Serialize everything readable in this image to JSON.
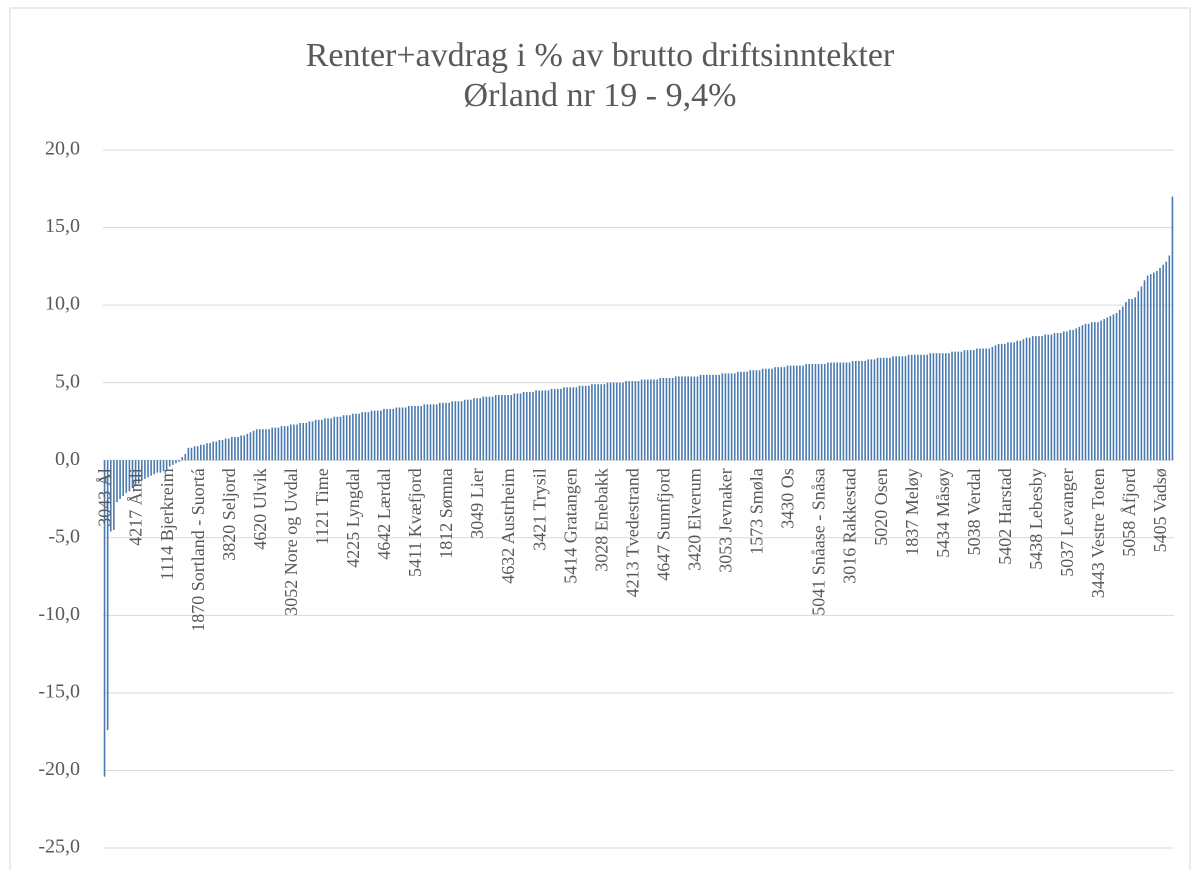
{
  "chart_data": {
    "type": "bar",
    "title": "Renter+avdrag i % av brutto driftsinntekter",
    "subtitle": "Ørland nr 19 - 9,4%",
    "color": "#4a7ab0",
    "grid": true,
    "ylim": [
      -25,
      20
    ],
    "yticks": [
      {
        "value": -25,
        "label": "-25,0"
      },
      {
        "value": -20,
        "label": "-20,0"
      },
      {
        "value": -15,
        "label": "-15,0"
      },
      {
        "value": -10,
        "label": "-10,0"
      },
      {
        "value": -5,
        "label": "-5,0"
      },
      {
        "value": 0,
        "label": "0,0"
      },
      {
        "value": 5,
        "label": "5,0"
      },
      {
        "value": 10,
        "label": "10,0"
      },
      {
        "value": 15,
        "label": "15,0"
      },
      {
        "value": 20,
        "label": "20,0"
      }
    ],
    "categories": [
      "3043 Ål",
      null,
      null,
      null,
      null,
      null,
      null,
      null,
      null,
      null,
      "4217 Åmli",
      null,
      null,
      null,
      null,
      null,
      null,
      null,
      null,
      null,
      "1114 Bjerkreim",
      null,
      null,
      null,
      null,
      null,
      null,
      null,
      null,
      null,
      "1870 Sortland - Suortá",
      null,
      null,
      null,
      null,
      null,
      null,
      null,
      null,
      null,
      "3820 Seljord",
      null,
      null,
      null,
      null,
      null,
      null,
      null,
      null,
      null,
      "4620 Ulvik",
      null,
      null,
      null,
      null,
      null,
      null,
      null,
      null,
      null,
      "3052 Nore og Uvdal",
      null,
      null,
      null,
      null,
      null,
      null,
      null,
      null,
      null,
      "1121 Time",
      null,
      null,
      null,
      null,
      null,
      null,
      null,
      null,
      null,
      "4225 Lyngdal",
      null,
      null,
      null,
      null,
      null,
      null,
      null,
      null,
      null,
      "4642 Lærdal",
      null,
      null,
      null,
      null,
      null,
      null,
      null,
      null,
      null,
      "5411 Kvæfjord",
      null,
      null,
      null,
      null,
      null,
      null,
      null,
      null,
      null,
      "1812 Sømna",
      null,
      null,
      null,
      null,
      null,
      null,
      null,
      null,
      null,
      "3049 Lier",
      null,
      null,
      null,
      null,
      null,
      null,
      null,
      null,
      null,
      "4632 Austrheim",
      null,
      null,
      null,
      null,
      null,
      null,
      null,
      null,
      null,
      "3421 Trysil",
      null,
      null,
      null,
      null,
      null,
      null,
      null,
      null,
      null,
      "5414 Gratangen",
      null,
      null,
      null,
      null,
      null,
      null,
      null,
      null,
      null,
      "3028 Enebakk",
      null,
      null,
      null,
      null,
      null,
      null,
      null,
      null,
      null,
      "4213 Tvedestrand",
      null,
      null,
      null,
      null,
      null,
      null,
      null,
      null,
      null,
      "4647 Sunnfjord",
      null,
      null,
      null,
      null,
      null,
      null,
      null,
      null,
      null,
      "3420 Elverum",
      null,
      null,
      null,
      null,
      null,
      null,
      null,
      null,
      null,
      "3053 Jevnaker",
      null,
      null,
      null,
      null,
      null,
      null,
      null,
      null,
      null,
      "1573 Smøla",
      null,
      null,
      null,
      null,
      null,
      null,
      null,
      null,
      null,
      "3430 Os",
      null,
      null,
      null,
      null,
      null,
      null,
      null,
      null,
      null,
      "5041 Snåase - Snåsa",
      null,
      null,
      null,
      null,
      null,
      null,
      null,
      null,
      null,
      "3016 Rakkestad",
      null,
      null,
      null,
      null,
      null,
      null,
      null,
      null,
      null,
      "5020 Osen",
      null,
      null,
      null,
      null,
      null,
      null,
      null,
      null,
      null,
      "1837 Meløy",
      null,
      null,
      null,
      null,
      null,
      null,
      null,
      null,
      null,
      "5434 Måsøy",
      null,
      null,
      null,
      null,
      null,
      null,
      null,
      null,
      null,
      "5038 Verdal",
      null,
      null,
      null,
      null,
      null,
      null,
      null,
      null,
      null,
      "5402 Harstad",
      null,
      null,
      null,
      null,
      null,
      null,
      null,
      null,
      null,
      "5438 Lebesby",
      null,
      null,
      null,
      null,
      null,
      null,
      null,
      null,
      null,
      "5037 Levanger",
      null,
      null,
      null,
      null,
      null,
      null,
      null,
      null,
      null,
      "3443 Vestre Toten",
      null,
      null,
      null,
      null,
      null,
      null,
      null,
      null,
      null,
      "5058 Åfjord",
      null,
      null,
      null,
      null,
      null,
      null,
      null,
      null,
      null,
      "5405 Vadsø",
      null,
      null,
      null,
      null
    ],
    "values": [
      -20.4,
      -17.4,
      -4.6,
      -4.5,
      -2.7,
      -2.5,
      -2.3,
      -2.1,
      -2.0,
      -1.8,
      -1.6,
      -1.5,
      -1.3,
      -1.2,
      -1.1,
      -1.0,
      -0.9,
      -0.8,
      -0.8,
      -0.7,
      -0.6,
      -0.4,
      -0.3,
      -0.2,
      -0.1,
      0.2,
      0.4,
      0.8,
      0.8,
      0.9,
      0.9,
      1.0,
      1.0,
      1.1,
      1.1,
      1.2,
      1.2,
      1.3,
      1.3,
      1.4,
      1.4,
      1.5,
      1.5,
      1.5,
      1.6,
      1.6,
      1.7,
      1.8,
      1.9,
      2.0,
      2.0,
      2.0,
      2.0,
      2.0,
      2.1,
      2.1,
      2.1,
      2.2,
      2.2,
      2.2,
      2.3,
      2.3,
      2.3,
      2.4,
      2.4,
      2.4,
      2.5,
      2.5,
      2.6,
      2.6,
      2.6,
      2.7,
      2.7,
      2.7,
      2.8,
      2.8,
      2.8,
      2.9,
      2.9,
      2.9,
      3.0,
      3.0,
      3.0,
      3.1,
      3.1,
      3.1,
      3.2,
      3.2,
      3.2,
      3.2,
      3.3,
      3.3,
      3.3,
      3.3,
      3.4,
      3.4,
      3.4,
      3.4,
      3.5,
      3.5,
      3.5,
      3.5,
      3.5,
      3.6,
      3.6,
      3.6,
      3.6,
      3.6,
      3.7,
      3.7,
      3.7,
      3.7,
      3.8,
      3.8,
      3.8,
      3.8,
      3.9,
      3.9,
      3.9,
      4.0,
      4.0,
      4.0,
      4.1,
      4.1,
      4.1,
      4.1,
      4.2,
      4.2,
      4.2,
      4.2,
      4.2,
      4.2,
      4.3,
      4.3,
      4.3,
      4.4,
      4.4,
      4.4,
      4.4,
      4.5,
      4.5,
      4.5,
      4.5,
      4.5,
      4.6,
      4.6,
      4.6,
      4.6,
      4.7,
      4.7,
      4.7,
      4.7,
      4.7,
      4.8,
      4.8,
      4.8,
      4.8,
      4.9,
      4.9,
      4.9,
      4.9,
      4.9,
      5.0,
      5.0,
      5.0,
      5.0,
      5.0,
      5.0,
      5.1,
      5.1,
      5.1,
      5.1,
      5.1,
      5.2,
      5.2,
      5.2,
      5.2,
      5.2,
      5.2,
      5.3,
      5.3,
      5.3,
      5.3,
      5.3,
      5.4,
      5.4,
      5.4,
      5.4,
      5.4,
      5.4,
      5.4,
      5.4,
      5.5,
      5.5,
      5.5,
      5.5,
      5.5,
      5.5,
      5.5,
      5.6,
      5.6,
      5.6,
      5.6,
      5.6,
      5.7,
      5.7,
      5.7,
      5.7,
      5.8,
      5.8,
      5.8,
      5.8,
      5.9,
      5.9,
      5.9,
      5.9,
      6.0,
      6.0,
      6.0,
      6.0,
      6.1,
      6.1,
      6.1,
      6.1,
      6.1,
      6.1,
      6.2,
      6.2,
      6.2,
      6.2,
      6.2,
      6.2,
      6.2,
      6.3,
      6.3,
      6.3,
      6.3,
      6.3,
      6.3,
      6.3,
      6.3,
      6.4,
      6.4,
      6.4,
      6.4,
      6.4,
      6.5,
      6.5,
      6.5,
      6.6,
      6.6,
      6.6,
      6.6,
      6.6,
      6.7,
      6.7,
      6.7,
      6.7,
      6.7,
      6.8,
      6.8,
      6.8,
      6.8,
      6.8,
      6.8,
      6.8,
      6.9,
      6.9,
      6.9,
      6.9,
      6.9,
      6.9,
      6.9,
      7.0,
      7.0,
      7.0,
      7.0,
      7.1,
      7.1,
      7.1,
      7.1,
      7.2,
      7.2,
      7.2,
      7.2,
      7.2,
      7.3,
      7.4,
      7.5,
      7.5,
      7.5,
      7.6,
      7.6,
      7.6,
      7.7,
      7.7,
      7.8,
      7.9,
      7.9,
      8.0,
      8.0,
      8.0,
      8.0,
      8.1,
      8.1,
      8.1,
      8.2,
      8.2,
      8.2,
      8.3,
      8.3,
      8.4,
      8.4,
      8.5,
      8.6,
      8.7,
      8.8,
      8.8,
      8.9,
      8.9,
      8.9,
      9.0,
      9.1,
      9.2,
      9.3,
      9.4,
      9.5,
      9.7,
      9.9,
      10.2,
      10.4,
      10.4,
      10.5,
      10.9,
      11.2,
      11.6,
      11.9,
      12.0,
      12.1,
      12.2,
      12.4,
      12.6,
      12.8,
      13.2,
      17.0
    ]
  }
}
